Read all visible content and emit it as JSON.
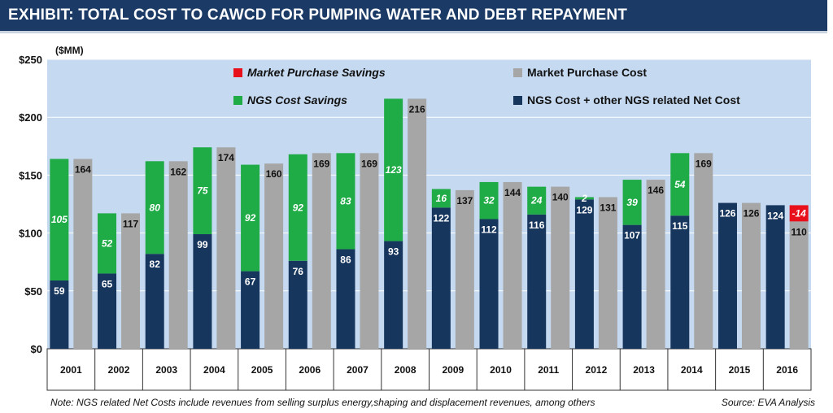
{
  "header": {
    "title": "EXHIBIT: TOTAL COST TO CAWCD FOR PUMPING WATER AND DEBT REPAYMENT"
  },
  "footer": {
    "note": "Note: NGS related Net Costs include revenues from selling surplus energy,shaping and displacement revenues, among others",
    "source": "Source: EVA Analysis"
  },
  "colors": {
    "ngs": "#17365d",
    "savings": "#1fab46",
    "market": "#a6a6a6",
    "market_savings": "#e8101a",
    "plot_bg": "#c5d9f1",
    "title_bar": "#1b3b66"
  },
  "chart_data": {
    "type": "bar",
    "unit_label": "($MM)",
    "categories": [
      "2001",
      "2002",
      "2003",
      "2004",
      "2005",
      "2006",
      "2007",
      "2008",
      "2009",
      "2010",
      "2011",
      "2012",
      "2013",
      "2014",
      "2015",
      "2016"
    ],
    "ylim": [
      0,
      250
    ],
    "yticks": [
      0,
      50,
      100,
      150,
      200,
      250
    ],
    "ytick_labels": [
      "$0",
      "$50",
      "$100",
      "$150",
      "$200",
      "$250"
    ],
    "grid": true,
    "legend_position": "top",
    "legend": [
      {
        "label": "Market Purchase Savings",
        "italic": true,
        "color_key": "market_savings"
      },
      {
        "label": "Market Purchase Cost",
        "italic": false,
        "color_key": "market"
      },
      {
        "label": "NGS Cost Savings",
        "italic": true,
        "color_key": "savings"
      },
      {
        "label": "NGS Cost + other NGS related Net Cost",
        "italic": false,
        "color_key": "ngs"
      }
    ],
    "series": [
      {
        "name": "NGS Cost + other NGS related Net Cost",
        "values": [
          59,
          65,
          82,
          99,
          67,
          76,
          86,
          93,
          122,
          112,
          116,
          129,
          107,
          115,
          126,
          124
        ]
      },
      {
        "name": "NGS Cost Savings",
        "values": [
          105,
          52,
          80,
          75,
          92,
          92,
          83,
          123,
          16,
          32,
          24,
          2,
          39,
          54,
          null,
          null
        ]
      },
      {
        "name": "Market Purchase Cost",
        "values": [
          164,
          117,
          162,
          174,
          160,
          169,
          169,
          216,
          137,
          144,
          140,
          131,
          146,
          169,
          126,
          110
        ]
      },
      {
        "name": "Market Purchase Savings",
        "values": [
          null,
          null,
          null,
          null,
          null,
          null,
          null,
          null,
          null,
          null,
          null,
          null,
          null,
          null,
          null,
          -14
        ]
      }
    ]
  }
}
